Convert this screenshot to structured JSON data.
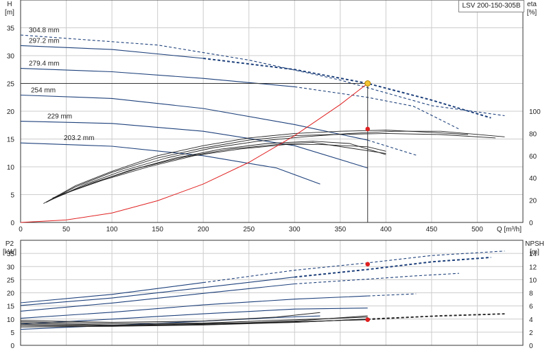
{
  "model": "LSV 200-150-305B",
  "chart_data": [
    {
      "type": "line",
      "name": "head",
      "x_axis": {
        "label": "Q [m³/h]",
        "range": [
          0,
          550
        ],
        "ticks": [
          0,
          50,
          100,
          150,
          200,
          250,
          300,
          350,
          400,
          450,
          500
        ]
      },
      "y_left": {
        "label": "H",
        "unit": "[m]",
        "range": [
          0,
          40
        ],
        "ticks": [
          0,
          5,
          10,
          15,
          20,
          25,
          30,
          35
        ]
      },
      "y_right": {
        "label": "eta",
        "unit": "[%]",
        "range": [
          0,
          200
        ],
        "ticks": [
          0,
          20,
          40,
          60,
          80,
          100
        ]
      },
      "grid": true,
      "head_curves": [
        {
          "diameter": "304.8 mm",
          "solid": [
            [
              0,
              33.7
            ]
          ],
          "dashed": [
            [
              0,
              33.7
            ],
            [
              150,
              31.9
            ],
            [
              250,
              29.2
            ],
            [
              350,
              25.6
            ],
            [
              450,
              21.0
            ],
            [
              530,
              19.2
            ]
          ]
        },
        {
          "diameter": "297.2 mm",
          "solid": [
            [
              0,
              31.8
            ],
            [
              100,
              31.1
            ],
            [
              200,
              29.5
            ]
          ],
          "dashed": [
            [
              200,
              29.5
            ],
            [
              300,
              27.5
            ],
            [
              380,
              25.0
            ],
            [
              450,
              22.0
            ],
            [
              515,
              18.8
            ]
          ]
        },
        {
          "diameter": "279.4 mm",
          "solid": [
            [
              0,
              27.7
            ],
            [
              100,
              27.1
            ],
            [
              200,
              25.9
            ],
            [
              300,
              24.4
            ]
          ],
          "dashed": [
            [
              300,
              24.4
            ],
            [
              380,
              22.5
            ],
            [
              430,
              20.9
            ],
            [
              480,
              16.8
            ]
          ]
        },
        {
          "diameter": "254 mm",
          "solid": [
            [
              0,
              22.9
            ],
            [
              100,
              22.3
            ],
            [
              200,
              20.5
            ],
            [
              300,
              17.6
            ],
            [
              380,
              14.8
            ]
          ],
          "dashed": [
            [
              380,
              14.8
            ],
            [
              433,
              12.1
            ]
          ]
        },
        {
          "diameter": "229 mm",
          "solid": [
            [
              0,
              18.2
            ],
            [
              100,
              17.8
            ],
            [
              200,
              16.4
            ],
            [
              300,
              13.8
            ],
            [
              380,
              9.8
            ]
          ],
          "dashed": []
        },
        {
          "diameter": "203.2 mm",
          "solid": [
            [
              0,
              14.3
            ],
            [
              100,
              13.7
            ],
            [
              200,
              12.0
            ],
            [
              280,
              9.8
            ],
            [
              328,
              6.9
            ]
          ],
          "dashed": []
        }
      ],
      "efficiency_curves": [
        {
          "points": [
            [
              25,
              17
            ],
            [
              60,
              33
            ],
            [
              100,
              46
            ],
            [
              150,
              60
            ],
            [
              200,
              69
            ],
            [
              250,
              76
            ],
            [
              300,
              80
            ],
            [
              350,
              82
            ],
            [
              400,
              83
            ],
            [
              450,
              81
            ],
            [
              490,
              79
            ]
          ]
        },
        {
          "points": [
            [
              28,
              18
            ],
            [
              60,
              32
            ],
            [
              100,
              45
            ],
            [
              150,
              58
            ],
            [
              200,
              67
            ],
            [
              250,
              74
            ],
            [
              300,
              78
            ],
            [
              340,
              79
            ],
            [
              400,
              80
            ],
            [
              460,
              79
            ],
            [
              520,
              76
            ]
          ]
        },
        {
          "points": [
            [
              30,
              19
            ],
            [
              70,
              34
            ],
            [
              110,
              46
            ],
            [
              160,
              58
            ],
            [
              210,
              67
            ],
            [
              260,
              73
            ],
            [
              310,
              77
            ],
            [
              360,
              80
            ],
            [
              410,
              82
            ],
            [
              460,
              82
            ],
            [
              530,
              77
            ]
          ]
        },
        {
          "points": [
            [
              32,
              20
            ],
            [
              70,
              33
            ],
            [
              120,
              47
            ],
            [
              170,
              58
            ],
            [
              220,
              66
            ],
            [
              270,
              71
            ],
            [
              320,
              73
            ],
            [
              360,
              71
            ],
            [
              380,
              66
            ],
            [
              400,
              61
            ]
          ]
        },
        {
          "points": [
            [
              35,
              22
            ],
            [
              80,
              36
            ],
            [
              130,
              49
            ],
            [
              180,
              59
            ],
            [
              230,
              66
            ],
            [
              280,
              70
            ],
            [
              320,
              72
            ],
            [
              360,
              67
            ],
            [
              400,
              62
            ]
          ]
        },
        {
          "points": [
            [
              38,
              23
            ],
            [
              90,
              38
            ],
            [
              140,
              50
            ],
            [
              190,
              60
            ],
            [
              240,
              66
            ],
            [
              290,
              70
            ],
            [
              330,
              70
            ],
            [
              380,
              68
            ],
            [
              400,
              64
            ]
          ]
        }
      ],
      "system_curve": [
        [
          0,
          0
        ],
        [
          50,
          0.45
        ],
        [
          100,
          1.7
        ],
        [
          150,
          3.9
        ],
        [
          200,
          6.9
        ],
        [
          250,
          10.8
        ],
        [
          300,
          15.6
        ],
        [
          350,
          21.2
        ],
        [
          380,
          25.0
        ]
      ],
      "duty_point": {
        "Q": 380,
        "H": 25.0
      },
      "efficiency_point": {
        "Q": 380,
        "eta": 84
      }
    },
    {
      "type": "line",
      "name": "power_npsh",
      "x_axis": {
        "range": [
          0,
          550
        ]
      },
      "y_left": {
        "label": "P2",
        "unit": "[kW]",
        "range": [
          0,
          40
        ],
        "ticks": [
          0,
          5,
          10,
          15,
          20,
          25,
          30,
          35
        ]
      },
      "y_right": {
        "label": "NPSH",
        "unit": "[m]",
        "range": [
          0,
          16
        ],
        "ticks": [
          0,
          2,
          4,
          6,
          8,
          10,
          12,
          14
        ]
      },
      "grid": true,
      "power_curves": [
        {
          "solid": [
            [
              0,
              16.2
            ],
            [
              100,
              19.4
            ],
            [
              200,
              23.9
            ]
          ],
          "dashed": [
            [
              200,
              23.9
            ],
            [
              300,
              28.6
            ],
            [
              380,
              31.4
            ],
            [
              450,
              34.2
            ],
            [
              530,
              35.9
            ]
          ]
        },
        {
          "solid": [
            [
              0,
              15.2
            ],
            [
              100,
              18.0
            ],
            [
              200,
              22.0
            ],
            [
              300,
              26.0
            ]
          ],
          "dashed": [
            [
              300,
              26.0
            ],
            [
              380,
              28.9
            ],
            [
              450,
              31.8
            ],
            [
              515,
              33.5
            ]
          ]
        },
        {
          "solid": [
            [
              0,
              13.0
            ],
            [
              100,
              16.1
            ],
            [
              200,
              19.8
            ],
            [
              300,
              23.4
            ]
          ],
          "dashed": [
            [
              300,
              23.4
            ],
            [
              380,
              25.2
            ],
            [
              430,
              26.4
            ],
            [
              480,
              27.4
            ]
          ]
        },
        {
          "solid": [
            [
              0,
              10.3
            ],
            [
              100,
              12.6
            ],
            [
              200,
              15.4
            ],
            [
              300,
              17.6
            ],
            [
              380,
              18.8
            ]
          ],
          "dashed": [
            [
              380,
              18.8
            ],
            [
              433,
              19.6
            ]
          ]
        },
        {
          "solid": [
            [
              0,
              8.1
            ],
            [
              100,
              10.0
            ],
            [
              200,
              12.0
            ],
            [
              300,
              13.8
            ],
            [
              380,
              14.2
            ]
          ],
          "dashed": []
        },
        {
          "solid": [
            [
              0,
              6.1
            ],
            [
              100,
              7.6
            ],
            [
              200,
              9.2
            ],
            [
              280,
              10.6
            ],
            [
              328,
              11.2
            ]
          ],
          "dashed": []
        }
      ],
      "npsh_curves": [
        {
          "solid": [
            [
              0,
              2.8
            ],
            [
              100,
              2.9
            ],
            [
              200,
              3.2
            ],
            [
              300,
              3.7
            ],
            [
              380,
              4.5
            ]
          ],
          "dashed": []
        },
        {
          "solid": [
            [
              0,
              3.0
            ],
            [
              100,
              2.9
            ],
            [
              200,
              3.1
            ],
            [
              300,
              3.5
            ],
            [
              380,
              4.0
            ]
          ],
          "dashed": [
            [
              380,
              4.0
            ],
            [
              460,
              4.5
            ],
            [
              530,
              4.8
            ]
          ]
        },
        {
          "solid": [
            [
              0,
              3.2
            ],
            [
              100,
              3.0
            ],
            [
              200,
              3.2
            ],
            [
              300,
              3.5
            ],
            [
              380,
              4.0
            ]
          ],
          "dashed": [
            [
              380,
              4.0
            ],
            [
              450,
              4.4
            ],
            [
              515,
              4.7
            ]
          ]
        },
        {
          "solid": [
            [
              0,
              3.4
            ],
            [
              100,
              3.1
            ],
            [
              200,
              3.3
            ],
            [
              300,
              3.6
            ],
            [
              380,
              3.9
            ]
          ],
          "dashed": [
            [
              380,
              3.9
            ],
            [
              433,
              4.3
            ]
          ]
        },
        {
          "solid": [
            [
              0,
              3.6
            ],
            [
              100,
              3.3
            ],
            [
              200,
              3.4
            ],
            [
              300,
              3.9
            ],
            [
              380,
              4.3
            ]
          ],
          "dashed": []
        },
        {
          "solid": [
            [
              0,
              3.8
            ],
            [
              100,
              3.5
            ],
            [
              200,
              3.7
            ],
            [
              280,
              4.3
            ],
            [
              328,
              5.0
            ]
          ],
          "dashed": []
        }
      ],
      "power_point": {
        "Q": 380,
        "P2": 30.9
      },
      "npsh_point": {
        "Q": 380,
        "NPSH": 3.9
      }
    }
  ],
  "colors": {
    "curve": "#1c3f7a",
    "eff": "#222222",
    "system": "#e02020",
    "duty": "#f3c332",
    "marker": "#e02020",
    "grid": "#cccccc"
  }
}
